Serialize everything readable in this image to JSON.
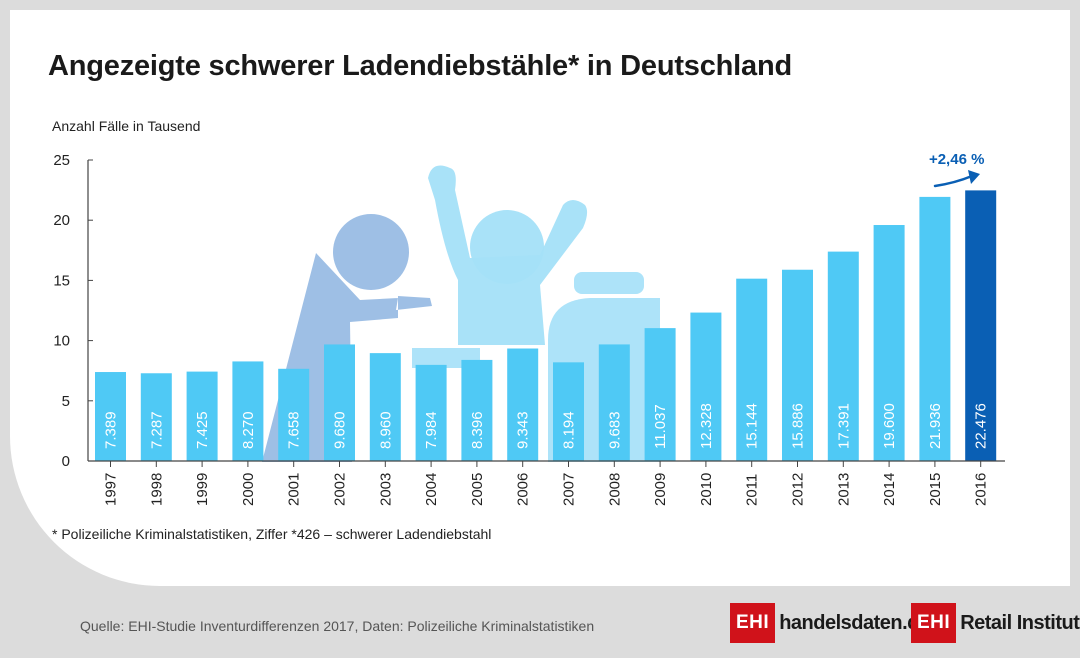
{
  "title": "Angezeigte schwerer Ladendiebstähle* in Deutschland",
  "footnote": "* Polizeiliche Kriminalstatistiken, Ziffer *426 – schwerer Ladendiebstahl",
  "source": "Quelle: EHI-Studie Inventurdifferenzen 2017, Daten: Polizeiliche Kriminalstatistiken",
  "logos": {
    "handelsdaten": {
      "box": "EHI",
      "text": "handelsdaten.de"
    },
    "retail": {
      "box": "EHI",
      "text": "Retail Institute",
      "reg": "®"
    }
  },
  "colors": {
    "bar": "#4fc9f5",
    "highlight": "#0a5fb4",
    "figure_dark": "#8db4e0",
    "figure_light": "#a4e0f8",
    "arrow": "#0a5fb4"
  },
  "chart_data": {
    "type": "bar",
    "ylabel": "Anzahl Fälle in Tausend",
    "xlabel": "",
    "ylim": [
      0,
      25
    ],
    "yticks": [
      0,
      5,
      10,
      15,
      20,
      25
    ],
    "grid": false,
    "categories": [
      "1997",
      "1998",
      "1999",
      "2000",
      "2001",
      "2002",
      "2003",
      "2004",
      "2005",
      "2006",
      "2007",
      "2008",
      "2009",
      "2010",
      "2011",
      "2012",
      "2013",
      "2014",
      "2015",
      "2016"
    ],
    "values": [
      7.389,
      7.287,
      7.425,
      8.27,
      7.658,
      9.68,
      8.96,
      7.984,
      8.396,
      9.343,
      8.194,
      9.683,
      11.037,
      12.328,
      15.144,
      15.886,
      17.391,
      19.6,
      21.936,
      22.476
    ],
    "labels": [
      "7.389",
      "7.287",
      "7.425",
      "8.270",
      "7.658",
      "9.680",
      "8.960",
      "7.984",
      "8.396",
      "9.343",
      "8.194",
      "9.683",
      "11.037",
      "12.328",
      "15.144",
      "15.886",
      "17.391",
      "19.600",
      "21.936",
      "22.476"
    ],
    "highlight_index": 19,
    "annotation": "+2,46 %"
  }
}
